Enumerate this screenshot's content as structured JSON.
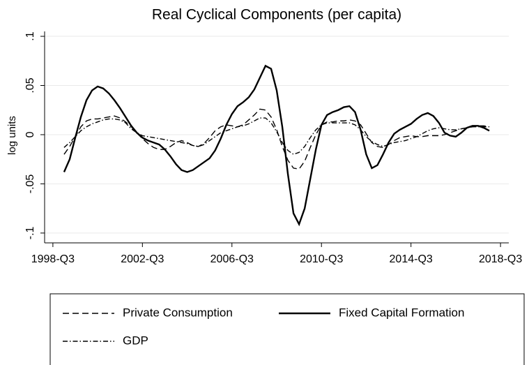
{
  "chart_data": {
    "type": "line",
    "title": "Real Cyclical Components (per capita)",
    "y_label": "log units",
    "x": [
      1999,
      1999.25,
      1999.5,
      1999.75,
      2000,
      2000.25,
      2000.5,
      2000.75,
      2001,
      2001.25,
      2001.5,
      2001.75,
      2002,
      2002.25,
      2002.5,
      2002.75,
      2003,
      2003.25,
      2003.5,
      2003.75,
      2004,
      2004.25,
      2004.5,
      2004.75,
      2005,
      2005.25,
      2005.5,
      2005.75,
      2006,
      2006.25,
      2006.5,
      2006.75,
      2007,
      2007.25,
      2007.5,
      2007.75,
      2008,
      2008.25,
      2008.5,
      2008.75,
      2009,
      2009.25,
      2009.5,
      2009.75,
      2010,
      2010.25,
      2010.5,
      2010.75,
      2011,
      2011.25,
      2011.5,
      2011.75,
      2012,
      2012.25,
      2012.5,
      2012.75,
      2013,
      2013.25,
      2013.5,
      2013.75,
      2014,
      2014.25,
      2014.5,
      2014.75,
      2015,
      2015.25,
      2015.5,
      2015.75,
      2016,
      2016.25,
      2016.5,
      2016.75,
      2017,
      2017.25,
      2017.5,
      2017.75,
      2018
    ],
    "series": [
      {
        "name": "Private Consumption",
        "color": "#000000",
        "line_style": "dashed",
        "values": [
          -0.02,
          -0.012,
          -0.002,
          0.008,
          0.014,
          0.016,
          0.016,
          0.017,
          0.018,
          0.019,
          0.017,
          0.013,
          0.008,
          0.002,
          -0.004,
          -0.009,
          -0.013,
          -0.015,
          -0.015,
          -0.012,
          -0.008,
          -0.006,
          -0.008,
          -0.011,
          -0.012,
          -0.009,
          -0.003,
          0.004,
          0.008,
          0.01,
          0.009,
          0.008,
          0.01,
          0.015,
          0.02,
          0.026,
          0.025,
          0.018,
          0.005,
          -0.012,
          -0.026,
          -0.034,
          -0.035,
          -0.027,
          -0.013,
          0,
          0.01,
          0.013,
          0.013,
          0.014,
          0.014,
          0.015,
          0.014,
          0.01,
          0.001,
          -0.008,
          -0.012,
          -0.013,
          -0.01,
          -0.006,
          -0.003,
          -0.002,
          -0.001,
          -0.002,
          -0.002,
          -0.001,
          -0.001,
          -0.001,
          0,
          0.002,
          0.004,
          0.006,
          0.007,
          0.008,
          0.009,
          0.009,
          0.008
        ]
      },
      {
        "name": "Fixed Capital Formation",
        "color": "#000000",
        "line_style": "solid",
        "values": [
          -0.038,
          -0.025,
          -0.003,
          0.018,
          0.035,
          0.045,
          0.049,
          0.047,
          0.042,
          0.035,
          0.027,
          0.018,
          0.009,
          0.002,
          -0.003,
          -0.006,
          -0.008,
          -0.01,
          -0.015,
          -0.022,
          -0.03,
          -0.036,
          -0.038,
          -0.036,
          -0.032,
          -0.028,
          -0.024,
          -0.016,
          -0.004,
          0.01,
          0.021,
          0.029,
          0.033,
          0.038,
          0.046,
          0.058,
          0.07,
          0.067,
          0.045,
          0.008,
          -0.04,
          -0.08,
          -0.091,
          -0.075,
          -0.045,
          -0.015,
          0.01,
          0.02,
          0.023,
          0.025,
          0.028,
          0.029,
          0.023,
          0.005,
          -0.02,
          -0.034,
          -0.031,
          -0.02,
          -0.008,
          0.001,
          0.005,
          0.008,
          0.011,
          0.016,
          0.02,
          0.022,
          0.019,
          0.012,
          0.002,
          -0.001,
          -0.002,
          0.002,
          0.007,
          0.009,
          0.009,
          0.007,
          0.004
        ]
      },
      {
        "name": "GDP",
        "color": "#000000",
        "line_style": "dashdot",
        "values": [
          -0.013,
          -0.008,
          -0.002,
          0.004,
          0.008,
          0.011,
          0.013,
          0.015,
          0.016,
          0.016,
          0.015,
          0.012,
          0.006,
          0.002,
          -0.001,
          -0.002,
          -0.003,
          -0.004,
          -0.005,
          -0.006,
          -0.007,
          -0.008,
          -0.009,
          -0.011,
          -0.012,
          -0.01,
          -0.006,
          -0.002,
          0.002,
          0.004,
          0.006,
          0.008,
          0.009,
          0.011,
          0.014,
          0.017,
          0.017,
          0.012,
          0.003,
          -0.008,
          -0.016,
          -0.02,
          -0.018,
          -0.012,
          -0.003,
          0.005,
          0.01,
          0.012,
          0.012,
          0.012,
          0.012,
          0.012,
          0.01,
          0.005,
          -0.002,
          -0.007,
          -0.01,
          -0.012,
          -0.01,
          -0.008,
          -0.007,
          -0.006,
          -0.004,
          -0.002,
          0.001,
          0.004,
          0.006,
          0.007,
          0.006,
          0.005,
          0.005,
          0.006,
          0.007,
          0.008,
          0.008,
          0.008,
          0.008
        ]
      }
    ],
    "xlim": [
      1998.13,
      2018.87
    ],
    "xticks": [
      {
        "value": 1998.5,
        "label": "1998-Q3"
      },
      {
        "value": 2002.5,
        "label": "2002-Q3"
      },
      {
        "value": 2006.5,
        "label": "2006-Q3"
      },
      {
        "value": 2010.5,
        "label": "2010-Q3"
      },
      {
        "value": 2014.5,
        "label": "2014-Q3"
      },
      {
        "value": 2018.5,
        "label": "2018-Q3"
      }
    ],
    "ylim": [
      -0.11,
      0.105
    ],
    "yticks": [
      {
        "value": -0.1,
        "label": "-.1"
      },
      {
        "value": -0.05,
        "label": "-.05"
      },
      0,
      {
        "value": 0.05,
        "label": ".05"
      },
      {
        "value": 0.1,
        "label": ".1"
      }
    ],
    "grid": true,
    "legend_position": "bottom"
  }
}
